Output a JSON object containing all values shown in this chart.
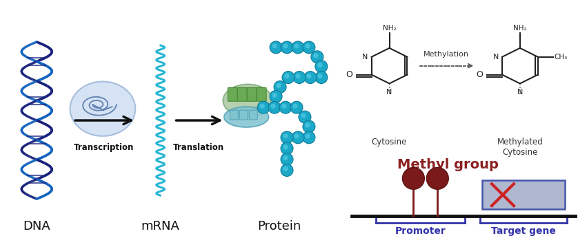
{
  "bg_color": "#ffffff",
  "left_labels": [
    "DNA",
    "mRNA",
    "Protein"
  ],
  "transcription_label": "Transcription",
  "translation_label": "Translation",
  "methyl_group_text": "Methyl group",
  "methyl_group_color": "#8b2020",
  "cytosine_label": "Cytosine",
  "methylated_cytosine_label": "Methylated\nCytosine",
  "methylation_label": "Methylation",
  "promoter_label": "Promoter",
  "target_gene_label": "Target gene",
  "bracket_color": "#3333aa",
  "gene_box_color": "#b0b8d0",
  "gene_box_edge": "#4455aa",
  "dna_dark": "#1a237e",
  "dna_light": "#1565c0",
  "mrna_color": "#29b6d4",
  "protein_color": "#29b6d4",
  "chem_color": "#222222",
  "cross_color": "#cc2222",
  "arrow_gene_color": "#3355cc",
  "methyl_ball_color": "#7b1a1a",
  "methyl_stick_color": "#7b1a1a"
}
